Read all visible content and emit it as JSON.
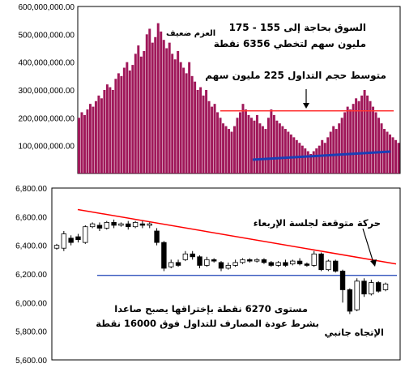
{
  "chart_data": [
    {
      "type": "bar",
      "title": "",
      "xlabel": "",
      "ylabel": "",
      "ylim": [
        0,
        600000000
      ],
      "yticks": [
        "600,000,000.00",
        "500,000,000.00",
        "400,000,000.00",
        "300,000,000.00",
        "200,000,000.00",
        "100,000,000.00"
      ],
      "ytick_values": [
        600000000,
        500000000,
        400000000,
        300000000,
        200000000,
        100000000
      ],
      "bar_color": "#a0185a",
      "series": [
        {
          "values": [
            200000000,
            220000000,
            210000000,
            230000000,
            250000000,
            240000000,
            260000000,
            280000000,
            270000000,
            300000000,
            320000000,
            310000000,
            300000000,
            340000000,
            360000000,
            350000000,
            380000000,
            400000000,
            370000000,
            390000000,
            430000000,
            460000000,
            420000000,
            440000000,
            500000000,
            520000000,
            470000000,
            490000000,
            540000000,
            510000000,
            480000000,
            450000000,
            470000000,
            430000000,
            410000000,
            440000000,
            400000000,
            380000000,
            360000000,
            400000000,
            350000000,
            330000000,
            300000000,
            310000000,
            280000000,
            300000000,
            260000000,
            240000000,
            250000000,
            220000000,
            200000000,
            180000000,
            170000000,
            160000000,
            150000000,
            170000000,
            200000000,
            220000000,
            250000000,
            230000000,
            210000000,
            200000000,
            190000000,
            210000000,
            180000000,
            170000000,
            160000000,
            200000000,
            230000000,
            210000000,
            190000000,
            180000000,
            170000000,
            160000000,
            150000000,
            140000000,
            130000000,
            120000000,
            110000000,
            100000000,
            90000000,
            80000000,
            70000000,
            80000000,
            90000000,
            100000000,
            120000000,
            110000000,
            130000000,
            150000000,
            170000000,
            160000000,
            180000000,
            200000000,
            220000000,
            240000000,
            230000000,
            250000000,
            270000000,
            260000000,
            280000000,
            300000000,
            280000000,
            260000000,
            240000000,
            220000000,
            200000000,
            180000000,
            160000000,
            150000000,
            140000000,
            130000000,
            120000000,
            110000000
          ]
        }
      ],
      "hlines": [
        {
          "value": 225000000,
          "color": "#ff3333"
        }
      ],
      "trend_color": "#1a3fb5",
      "annotations": {
        "top_left": "العزم ضعيف",
        "main_line1": "السوق بحاجة إلى 155 - 175",
        "main_line2": "مليون سهم لتخطي 6356 نقطة",
        "avg": "متوسط حجم التداول 225 مليون سهم"
      }
    },
    {
      "type": "candlestick",
      "title": "",
      "xlabel": "",
      "ylabel": "",
      "ylim": [
        5600,
        6800
      ],
      "yticks": [
        "6,800.00",
        "6,600.00",
        "6,400.00",
        "6,200.00",
        "6,000.00",
        "5,800.00",
        "5,600.00"
      ],
      "ytick_values": [
        6800,
        6600,
        6400,
        6200,
        6000,
        5800,
        5600
      ],
      "support_line": {
        "value": 6190,
        "color": "#1a3fb5"
      },
      "trend_line": {
        "from": 6650,
        "to": 6270,
        "color": "#ff0000"
      },
      "candles": [
        {
          "o": 6380,
          "c": 6400,
          "h": 6410,
          "l": 6370
        },
        {
          "o": 6380,
          "c": 6480,
          "h": 6500,
          "l": 6360
        },
        {
          "o": 6450,
          "c": 6420,
          "h": 6470,
          "l": 6400
        },
        {
          "o": 6460,
          "c": 6440,
          "h": 6480,
          "l": 6420
        },
        {
          "o": 6420,
          "c": 6530,
          "h": 6540,
          "l": 6410
        },
        {
          "o": 6530,
          "c": 6550,
          "h": 6560,
          "l": 6520
        },
        {
          "o": 6540,
          "c": 6520,
          "h": 6560,
          "l": 6500
        },
        {
          "o": 6520,
          "c": 6560,
          "h": 6570,
          "l": 6510
        },
        {
          "o": 6560,
          "c": 6540,
          "h": 6580,
          "l": 6520
        },
        {
          "o": 6540,
          "c": 6550,
          "h": 6560,
          "l": 6530
        },
        {
          "o": 6550,
          "c": 6530,
          "h": 6570,
          "l": 6510
        },
        {
          "o": 6530,
          "c": 6560,
          "h": 6570,
          "l": 6520
        },
        {
          "o": 6550,
          "c": 6540,
          "h": 6570,
          "l": 6520
        },
        {
          "o": 6540,
          "c": 6550,
          "h": 6560,
          "l": 6520
        },
        {
          "o": 6500,
          "c": 6420,
          "h": 6520,
          "l": 6400
        },
        {
          "o": 6420,
          "c": 6240,
          "h": 6430,
          "l": 6220
        },
        {
          "o": 6250,
          "c": 6280,
          "h": 6300,
          "l": 6240
        },
        {
          "o": 6280,
          "c": 6260,
          "h": 6300,
          "l": 6250
        },
        {
          "o": 6300,
          "c": 6340,
          "h": 6360,
          "l": 6290
        },
        {
          "o": 6340,
          "c": 6320,
          "h": 6360,
          "l": 6300
        },
        {
          "o": 6320,
          "c": 6260,
          "h": 6330,
          "l": 6240
        },
        {
          "o": 6260,
          "c": 6300,
          "h": 6320,
          "l": 6250
        },
        {
          "o": 6300,
          "c": 6290,
          "h": 6310,
          "l": 6280
        },
        {
          "o": 6280,
          "c": 6240,
          "h": 6290,
          "l": 6220
        },
        {
          "o": 6240,
          "c": 6260,
          "h": 6280,
          "l": 6230
        },
        {
          "o": 6260,
          "c": 6280,
          "h": 6300,
          "l": 6250
        },
        {
          "o": 6280,
          "c": 6300,
          "h": 6310,
          "l": 6270
        },
        {
          "o": 6300,
          "c": 6290,
          "h": 6310,
          "l": 6280
        },
        {
          "o": 6290,
          "c": 6300,
          "h": 6310,
          "l": 6280
        },
        {
          "o": 6300,
          "c": 6280,
          "h": 6310,
          "l": 6270
        },
        {
          "o": 6280,
          "c": 6260,
          "h": 6290,
          "l": 6250
        },
        {
          "o": 6260,
          "c": 6280,
          "h": 6290,
          "l": 6250
        },
        {
          "o": 6280,
          "c": 6260,
          "h": 6300,
          "l": 6250
        },
        {
          "o": 6270,
          "c": 6290,
          "h": 6300,
          "l": 6260
        },
        {
          "o": 6290,
          "c": 6270,
          "h": 6310,
          "l": 6260
        },
        {
          "o": 6270,
          "c": 6260,
          "h": 6280,
          "l": 6250
        },
        {
          "o": 6260,
          "c": 6340,
          "h": 6360,
          "l": 6250
        },
        {
          "o": 6340,
          "c": 6230,
          "h": 6350,
          "l": 6220
        },
        {
          "o": 6230,
          "c": 6290,
          "h": 6300,
          "l": 6220
        },
        {
          "o": 6290,
          "c": 6220,
          "h": 6300,
          "l": 6210
        },
        {
          "o": 6220,
          "c": 6090,
          "h": 6230,
          "l": 6000
        },
        {
          "o": 6090,
          "c": 5940,
          "h": 6100,
          "l": 5920
        },
        {
          "o": 5950,
          "c": 6150,
          "h": 6170,
          "l": 5940
        },
        {
          "o": 6150,
          "c": 6060,
          "h": 6170,
          "l": 6040
        },
        {
          "o": 6060,
          "c": 6140,
          "h": 6160,
          "l": 6050
        },
        {
          "o": 6140,
          "c": 6080,
          "h": 6150,
          "l": 6070
        },
        {
          "o": 6090,
          "c": 6130,
          "h": 6140,
          "l": 6080
        }
      ],
      "annotations": {
        "wed": "حركة متوقعة لجلسة الإربعاء",
        "bottom_line1": "مستوى 6270 نقطة بإختراقها يصبح صاعدا",
        "bottom_line2": "بشرط عودة المصارف للتداول فوق 16000 نقطة",
        "direction": "الإتجاه جانبي"
      }
    }
  ]
}
